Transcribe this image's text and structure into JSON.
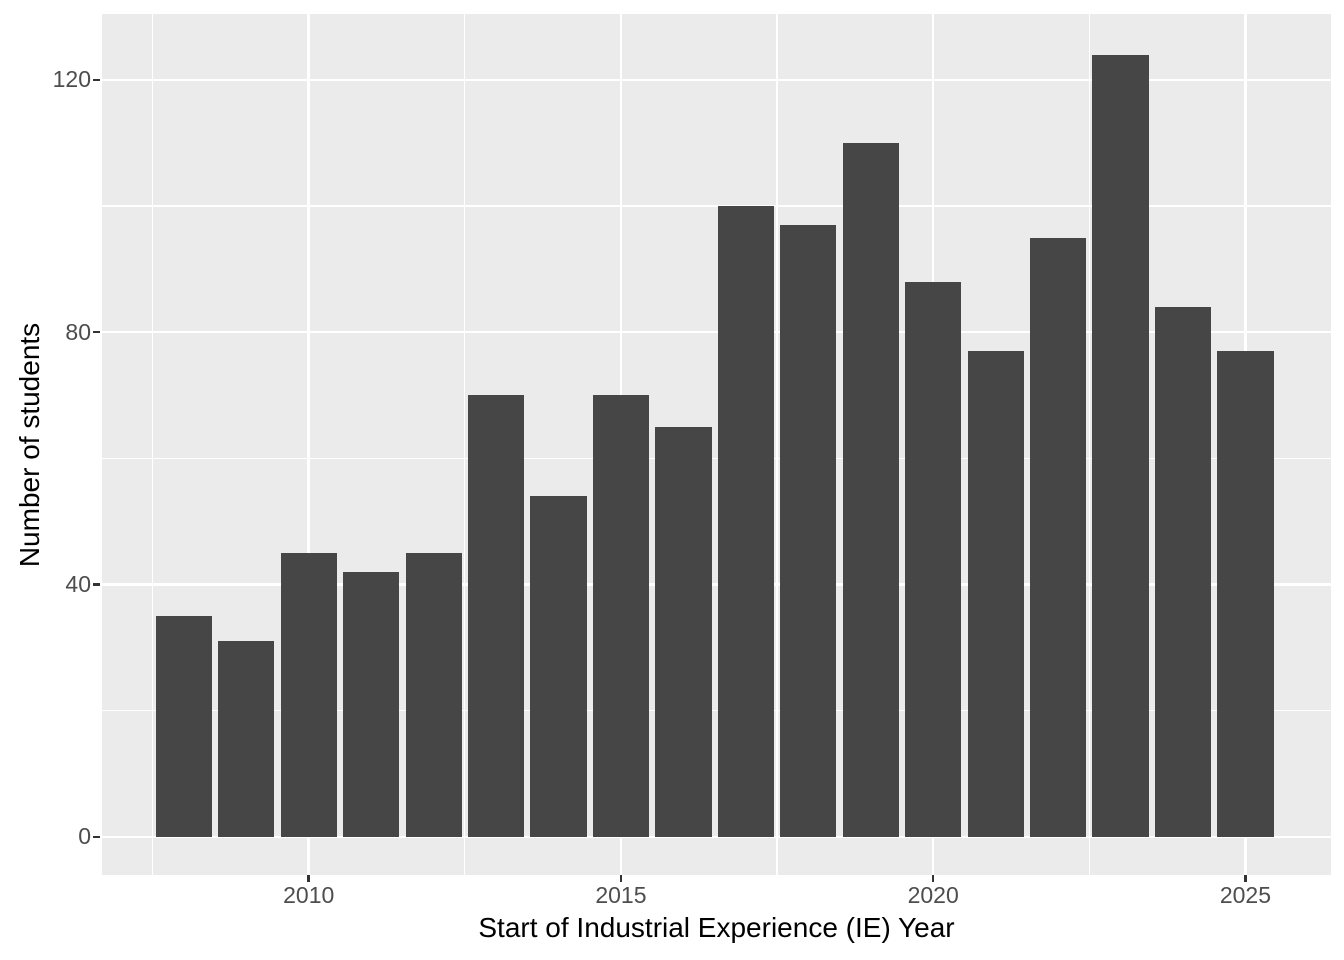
{
  "chart_data": {
    "type": "bar",
    "title": "",
    "xlabel": "Start of Industrial Experience (IE) Year",
    "ylabel": "Number of students",
    "categories": [
      2008,
      2009,
      2010,
      2011,
      2012,
      2013,
      2014,
      2015,
      2016,
      2017,
      2018,
      2019,
      2020,
      2021,
      2022,
      2023,
      2024,
      2025
    ],
    "values": [
      35,
      31,
      45,
      42,
      45,
      70,
      54,
      70,
      65,
      100,
      97,
      110,
      88,
      77,
      95,
      124,
      84,
      77
    ],
    "x_ticks": [
      2010,
      2015,
      2020,
      2025
    ],
    "x_tick_labels": [
      "2010",
      "2015",
      "2020",
      "2025"
    ],
    "x_minor_ticks": [
      2007.5,
      2012.5,
      2017.5,
      2022.5
    ],
    "y_ticks": [
      0,
      40,
      80,
      120
    ],
    "y_tick_labels": [
      "0",
      "40",
      "80",
      "120"
    ],
    "y_minor_ticks": [
      20,
      60,
      100
    ],
    "xlim": [
      2006.69,
      2026.37
    ],
    "ylim": [
      -6.05,
      130.44
    ],
    "bar_width_years": 0.9,
    "grid": true,
    "legend": false,
    "colors": {
      "bar_fill": "#464646",
      "panel_background": "#EBEBEB",
      "gridline": "#FFFFFF",
      "tick_label": "#4D4D4D",
      "axis_title": "#000000",
      "tick_mark": "#333333",
      "figure_background": "#FFFFFF"
    }
  }
}
